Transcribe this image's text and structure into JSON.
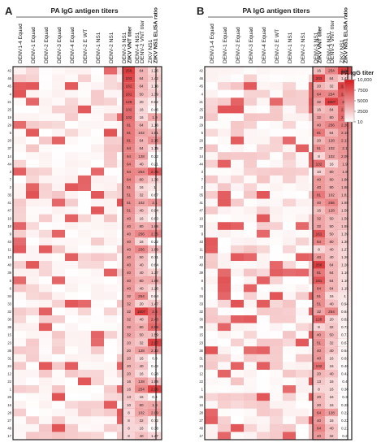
{
  "chart_data": {
    "type": "heatmap",
    "panels": [
      {
        "label": "A",
        "header": "PA IgG antigen titers",
        "antigen_columns": [
          "DENV1-4 Equad",
          "DENV-1 Equad",
          "DENV-2 Equad",
          "DENV-3 Equad",
          "DENV-4 Equad",
          "DENV-2 E WT",
          "DENV-1 NS1",
          "DENV-2 NS1",
          "DENV-3 NS1",
          "DENV-4 NS1",
          "ZIKV NS1"
        ],
        "value_columns": [
          "ZIKV VNT titer",
          "DENV-2 VNT titer",
          "ZIKV NS1 ELISA ratio"
        ],
        "sample_ids": [
          "42",
          "46",
          "45",
          "4",
          "21",
          "25",
          "19",
          "29",
          "5",
          "20",
          "37",
          "14",
          "44",
          "3",
          "7",
          "2",
          "35",
          "41",
          "47",
          "10",
          "18",
          "9",
          "43",
          "11",
          "13",
          "40",
          "39",
          "8",
          "6",
          "34",
          "33",
          "32",
          "30",
          "38",
          "15",
          "23",
          "36",
          "31",
          "24",
          "12",
          "22",
          "1",
          "26",
          "16",
          "28",
          "27",
          "48",
          "17"
        ],
        "rows": [
          [
            256,
            64,
            1.26
          ],
          [
            203,
            64,
            1.42
          ],
          [
            161,
            64,
            1.16
          ],
          [
            161,
            50,
            1.39
          ],
          [
            128,
            20,
            0.82
          ],
          [
            102,
            16,
            0.46
          ],
          [
            102,
            16,
            1.9
          ],
          [
            81,
            64,
            1.16
          ],
          [
            81,
            102,
            1.81
          ],
          [
            81,
            64,
            2.15
          ],
          [
            64,
            64,
            1.15
          ],
          [
            64,
            128,
            0.22
          ],
          [
            64,
            40,
            0.21
          ],
          [
            64,
            254,
            2.75
          ],
          [
            64,
            80,
            1.36
          ],
          [
            51,
            16,
            1
          ],
          [
            51,
            32,
            0.67
          ],
          [
            51,
            102,
            2.1
          ],
          [
            51,
            40,
            0.94
          ],
          [
            40,
            16,
            0.63
          ],
          [
            40,
            80,
            1.86
          ],
          [
            40,
            256,
            2.35
          ],
          [
            40,
            16,
            0.22
          ],
          [
            40,
            256,
            1.69
          ],
          [
            40,
            50,
            0.71
          ],
          [
            40,
            40,
            0.64
          ],
          [
            40,
            40,
            1.37
          ],
          [
            40,
            80,
            1.86
          ],
          [
            40,
            40,
            1.26
          ],
          [
            32,
            254,
            0.84
          ],
          [
            32,
            20,
            1.47
          ],
          [
            32,
            1807,
            2.6
          ],
          [
            32,
            40,
            2.43
          ],
          [
            32,
            80,
            2.58
          ],
          [
            32,
            50,
            1.59
          ],
          [
            20,
            32,
            2.97
          ],
          [
            20,
            128,
            2.13
          ],
          [
            20,
            16,
            0.3
          ],
          [
            20,
            40,
            0.42
          ],
          [
            20,
            16,
            0.28
          ],
          [
            16,
            128,
            1.59
          ],
          [
            16,
            254,
            2.96
          ],
          [
            13,
            16,
            0.4
          ],
          [
            10,
            80,
            1.9
          ],
          [
            8,
            102,
            2.09
          ],
          [
            8,
            32,
            0.72
          ],
          [
            8,
            16,
            0.38
          ],
          [
            8,
            40,
            1.27
          ]
        ]
      },
      {
        "label": "B",
        "header": "PA IgG antigen titers",
        "antigen_columns": [
          "DENV1-4 Equad",
          "DENV-1 Equad",
          "DENV-2 Equad",
          "DENV-3 Equad",
          "DENV-4 Equad",
          "DENV-2 E WT",
          "DENV-1 NS1",
          "DENV-2 NS1",
          "DENV-3 NS1",
          "DENV-4 NS1",
          "ZIKV NS1"
        ],
        "value_columns": [
          "ZIKV VNT titer",
          "DENV-2 VNT titer",
          "ZIKV NS1 ELISA ratio"
        ],
        "sample_ids": [
          "42",
          "46",
          "45",
          "4",
          "21",
          "25",
          "19",
          "29",
          "5",
          "20",
          "37",
          "14",
          "44",
          "3",
          "7",
          "2",
          "35",
          "41",
          "47",
          "10",
          "18",
          "9",
          "43",
          "11",
          "13",
          "40",
          "39",
          "8",
          "6",
          "34",
          "33",
          "32",
          "30",
          "38",
          "15",
          "23",
          "36",
          "31",
          "24",
          "12",
          "22",
          "1",
          "26",
          "16",
          "28",
          "27",
          "48",
          "17"
        ],
        "rows": [
          [
            16,
            254,
            2.96
          ],
          [
            203,
            64,
            1.42
          ],
          [
            20,
            32,
            2.97
          ],
          [
            64,
            254,
            2.75
          ],
          [
            32,
            1807,
            2.6
          ],
          [
            16,
            64,
            2.58
          ],
          [
            32,
            80,
            2.58
          ],
          [
            40,
            256,
            2.35
          ],
          [
            81,
            64,
            2.15
          ],
          [
            20,
            128,
            2.13
          ],
          [
            51,
            102,
            2.1
          ],
          [
            8,
            102,
            2.09
          ],
          [
            102,
            16,
            1.9
          ],
          [
            10,
            80,
            1.9
          ],
          [
            40,
            80,
            1.86
          ],
          [
            40,
            80,
            1.86
          ],
          [
            81,
            102,
            1.81
          ],
          [
            40,
            256,
            1.69
          ],
          [
            16,
            128,
            1.59
          ],
          [
            32,
            50,
            1.59
          ],
          [
            32,
            50,
            1.59
          ],
          [
            161,
            50,
            1.39
          ],
          [
            64,
            80,
            1.36
          ],
          [
            8,
            40,
            1.27
          ],
          [
            40,
            40,
            1.26
          ],
          [
            256,
            64,
            1.26
          ],
          [
            81,
            64,
            1.16
          ],
          [
            161,
            64,
            1.16
          ],
          [
            64,
            64,
            1.15
          ],
          [
            51,
            16,
            1
          ],
          [
            51,
            40,
            0.94
          ],
          [
            32,
            254,
            0.84
          ],
          [
            128,
            20,
            0.82
          ],
          [
            8,
            32,
            0.72
          ],
          [
            40,
            50,
            0.71
          ],
          [
            51,
            32,
            0.67
          ],
          [
            40,
            40,
            0.64
          ],
          [
            40,
            16,
            0.63
          ],
          [
            102,
            16,
            0.46
          ],
          [
            20,
            40,
            0.42
          ],
          [
            13,
            16,
            0.4
          ],
          [
            8,
            16,
            0.38
          ],
          [
            20,
            16,
            0.3
          ],
          [
            20,
            16,
            0.28
          ],
          [
            64,
            128,
            0.22
          ],
          [
            40,
            16,
            0.22
          ],
          [
            64,
            40,
            0.21
          ],
          [
            40,
            32,
            0.2
          ]
        ]
      }
    ],
    "legend": {
      "title": "PA IgG titer",
      "ticks": [
        "10,000",
        "7500",
        "5000",
        "2500",
        "10"
      ],
      "scale": [
        10,
        10000
      ],
      "color_low": "#ffffff",
      "color_high": "#d7191c"
    }
  }
}
